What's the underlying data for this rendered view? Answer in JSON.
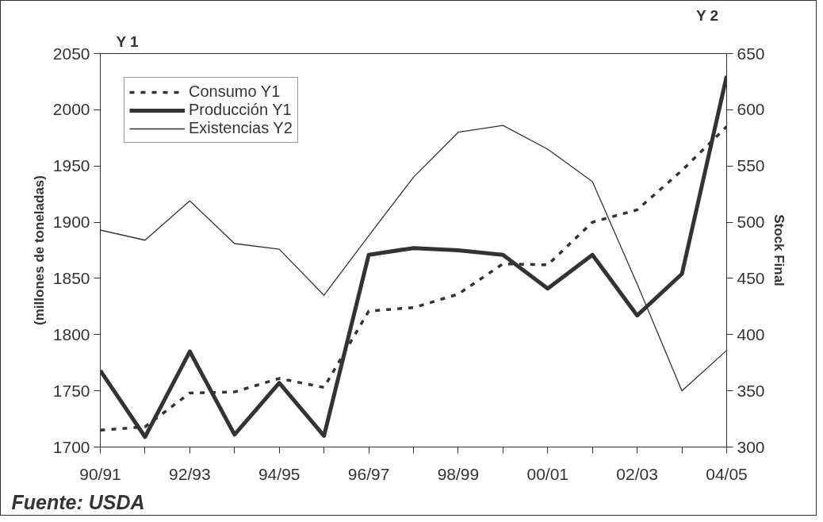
{
  "chart_data": {
    "type": "line",
    "categories": [
      "90/91",
      null,
      "92/93",
      null,
      "94/95",
      null,
      "96/97",
      null,
      "98/99",
      null,
      "00/01",
      null,
      "02/03",
      null,
      "04/05"
    ],
    "series": [
      {
        "name": "Consumo Y1",
        "color": "#333333",
        "line_style": "dashed",
        "values": [
          1715,
          1718,
          1748,
          1749,
          1761,
          1753,
          1821,
          1824,
          1836,
          1863,
          1862,
          1900,
          1911,
          1946,
          1985
        ]
      },
      {
        "name": "Producción Y1",
        "color": "#333333",
        "line_style": "solid",
        "values": [
          1768,
          1709,
          1785,
          1711,
          1757,
          1710,
          1871,
          1877,
          1875,
          1871,
          1841,
          1871,
          1817,
          1854,
          2030
        ]
      },
      {
        "name": "Existencias Y2",
        "color": "#333333",
        "line_style": "solid",
        "axis": "y2",
        "values": [
          493,
          484,
          519,
          481,
          476,
          435,
          488,
          540,
          580,
          586,
          565,
          536,
          445,
          350,
          386
        ]
      }
    ],
    "ylabel": "(millones de toneladas)",
    "y2label": "Stock Final",
    "ylim": [
      1700,
      2050
    ],
    "yticks": [
      1700,
      1750,
      1800,
      1850,
      1900,
      1950,
      2000,
      2050
    ],
    "y2lim": [
      300,
      650
    ],
    "y2ticks": [
      300,
      350,
      400,
      450,
      500,
      550,
      600,
      650
    ],
    "annotations": [
      "Y 1",
      "Y 2",
      "Fuente: USDA"
    ],
    "legend": "top left",
    "grid": false,
    "marker": "none"
  }
}
